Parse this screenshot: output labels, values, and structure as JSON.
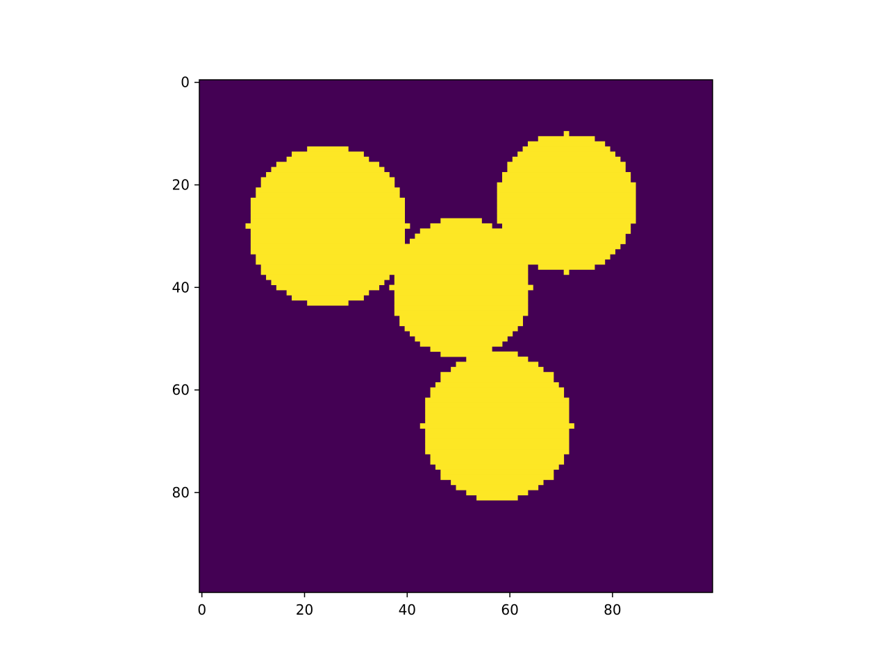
{
  "chart_data": {
    "type": "heatmap",
    "title": "",
    "xlabel": "",
    "ylabel": "",
    "image_size": [
      100,
      100
    ],
    "xlim": [
      -0.5,
      99.5
    ],
    "ylim": [
      99.5,
      -0.5
    ],
    "x_ticks": [
      0,
      20,
      40,
      60,
      80
    ],
    "y_ticks": [
      0,
      20,
      40,
      60,
      80
    ],
    "x_tick_labels": [
      "0",
      "20",
      "40",
      "60",
      "80"
    ],
    "y_tick_labels": [
      "0",
      "20",
      "40",
      "60",
      "80"
    ],
    "colormap": "viridis",
    "background_value": 0,
    "foreground_value": 1,
    "colors": {
      "background": "#440154",
      "foreground": "#fde725",
      "axis": "#000000"
    },
    "legend": "none",
    "grid": false,
    "disks": [
      {
        "center_x": 24.5,
        "center_y": 28.0,
        "radius": 15.5
      },
      {
        "center_x": 71.0,
        "center_y": 23.5,
        "radius": 13.5
      },
      {
        "center_x": 50.5,
        "center_y": 40.0,
        "radius": 13.5
      },
      {
        "center_x": 57.5,
        "center_y": 67.0,
        "radius": 14.5
      }
    ]
  }
}
